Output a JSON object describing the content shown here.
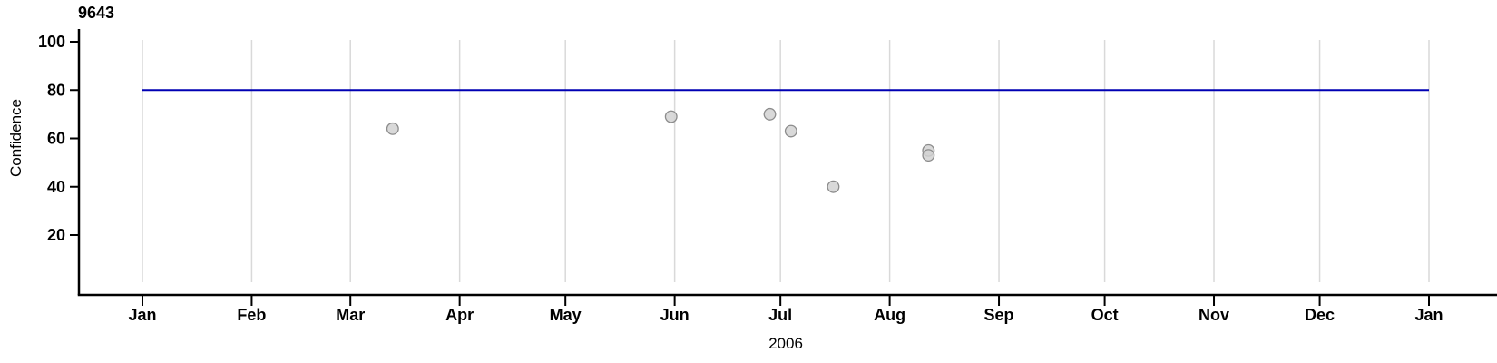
{
  "chart_data": {
    "type": "scatter",
    "title": "9643",
    "xlabel": "2006",
    "ylabel": "Confidence",
    "legend": "none",
    "grid": "vertical-only",
    "x_axis": {
      "unit": "day-of-year-2006",
      "tick_labels": [
        "Jan",
        "Feb",
        "Mar",
        "Apr",
        "May",
        "Jun",
        "Jul",
        "Aug",
        "Sep",
        "Oct",
        "Nov",
        "Dec",
        "Jan"
      ],
      "tick_days": [
        0,
        31,
        59,
        90,
        120,
        151,
        181,
        212,
        243,
        273,
        304,
        334,
        365
      ]
    },
    "y_axis": {
      "ticks": [
        100,
        80,
        60,
        40,
        20
      ],
      "ylim": [
        0,
        101
      ]
    },
    "reference_line": {
      "value": 80,
      "span_days": [
        0,
        365
      ],
      "color": "#0000b4"
    },
    "points": [
      {
        "date": "2006-03-13",
        "day": 71,
        "value": 64
      },
      {
        "date": "2006-05-31",
        "day": 150,
        "value": 69
      },
      {
        "date": "2006-06-28",
        "day": 178,
        "value": 70
      },
      {
        "date": "2006-07-04",
        "day": 184,
        "value": 63
      },
      {
        "date": "2006-07-16",
        "day": 196,
        "value": 40
      },
      {
        "date": "2006-08-12",
        "day": 223,
        "value": 55
      },
      {
        "date": "2006-08-12",
        "day": 223,
        "value": 53
      }
    ],
    "point_style": {
      "fill": "#d2d2d2",
      "stroke": "#8c8c8c",
      "radius": 6.3,
      "fill_opacity": 0.85
    },
    "colors": {
      "grid": "#d9d9d9",
      "axis": "#000000",
      "text": "#000000",
      "background": "#ffffff"
    }
  }
}
